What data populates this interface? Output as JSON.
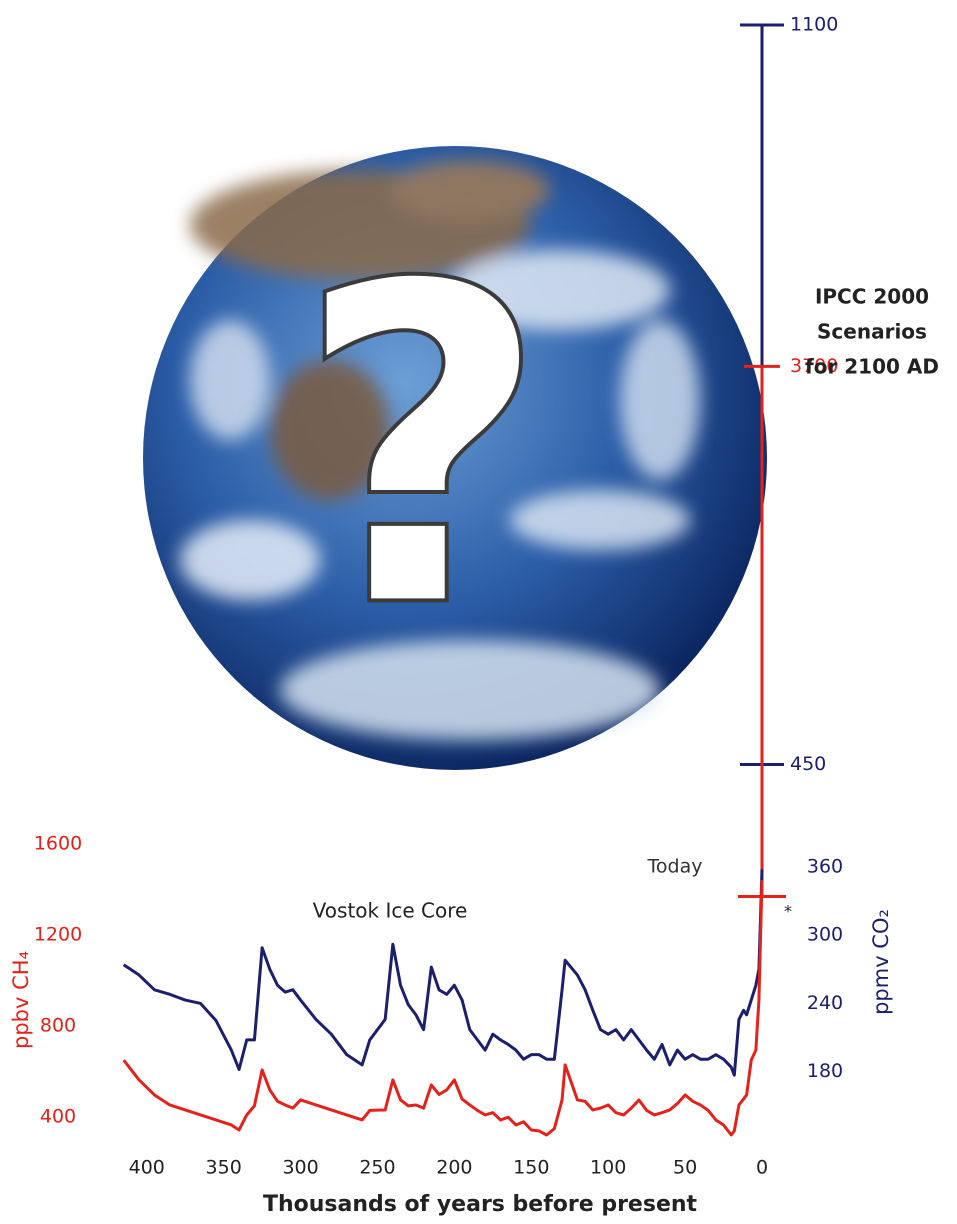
{
  "chart_data": {
    "type": "line",
    "title": "Vostok Ice Core",
    "xlabel": "Thousands of years before present",
    "ylabel": "ppbv CH₄",
    "y2label": "ppmv CO₂",
    "illustration_text": "?",
    "note": "*",
    "x": [
      415,
      405,
      395,
      385,
      375,
      365,
      355,
      345,
      340,
      335,
      330,
      325,
      320,
      315,
      310,
      305,
      300,
      290,
      280,
      270,
      260,
      255,
      245,
      240,
      235,
      230,
      225,
      220,
      215,
      210,
      205,
      200,
      195,
      190,
      185,
      180,
      175,
      170,
      165,
      160,
      155,
      150,
      145,
      140,
      135,
      130,
      128,
      120,
      115,
      110,
      105,
      100,
      95,
      90,
      85,
      80,
      75,
      70,
      65,
      60,
      55,
      50,
      45,
      40,
      35,
      30,
      25,
      20,
      18,
      15,
      12,
      10,
      7,
      4,
      2,
      1,
      0
    ],
    "xlim": [
      420,
      0
    ],
    "xticks": [
      400,
      350,
      300,
      250,
      200,
      150,
      100,
      50,
      0
    ],
    "ylim": [
      300,
      5200
    ],
    "yticks": [
      400,
      800,
      1200,
      1600
    ],
    "y2lim": [
      120,
      1100
    ],
    "y2ticks": [
      180,
      240,
      300,
      360
    ],
    "series": [
      {
        "color": "#1b1f6c",
        "axis": "y2",
        "values": [
          274,
          265,
          252,
          248,
          243,
          240,
          225,
          199,
          182,
          208,
          208,
          289,
          270,
          256,
          250,
          252,
          243,
          226,
          213,
          195,
          186,
          208,
          226,
          292,
          256,
          239,
          230,
          217,
          272,
          252,
          248,
          256,
          243,
          217,
          208,
          199,
          213,
          208,
          204,
          199,
          191,
          195,
          195,
          191,
          191,
          252,
          278,
          265,
          252,
          234,
          217,
          213,
          217,
          208,
          217,
          208,
          199,
          191,
          204,
          186,
          199,
          191,
          195,
          191,
          191,
          195,
          191,
          184,
          177,
          226,
          234,
          230,
          243,
          256,
          270,
          314,
          358
        ]
      },
      {
        "color": "#e3231b",
        "values": [
          651,
          564,
          498,
          454,
          432,
          410,
          388,
          366,
          344,
          410,
          450,
          608,
          520,
          470,
          454,
          440,
          476,
          454,
          432,
          410,
          388,
          430,
          432,
          564,
          476,
          450,
          454,
          440,
          542,
          500,
          520,
          564,
          480,
          454,
          430,
          410,
          420,
          388,
          400,
          366,
          380,
          344,
          340,
          322,
          350,
          476,
          630,
          476,
          470,
          432,
          440,
          454,
          420,
          410,
          440,
          476,
          430,
          410,
          420,
          432,
          460,
          498,
          470,
          454,
          430,
          388,
          366,
          322,
          340,
          454,
          480,
          498,
          651,
          695,
          915,
          1179,
          1442
        ]
      }
    ],
    "today": {
      "label": "Today",
      "value": 1370
    },
    "scenarios": {
      "label": [
        "IPCC 2000",
        "Scenarios",
        "for 2100 AD"
      ],
      "co2_range": [
        450,
        1100
      ],
      "ch4_max": 3700
    }
  }
}
